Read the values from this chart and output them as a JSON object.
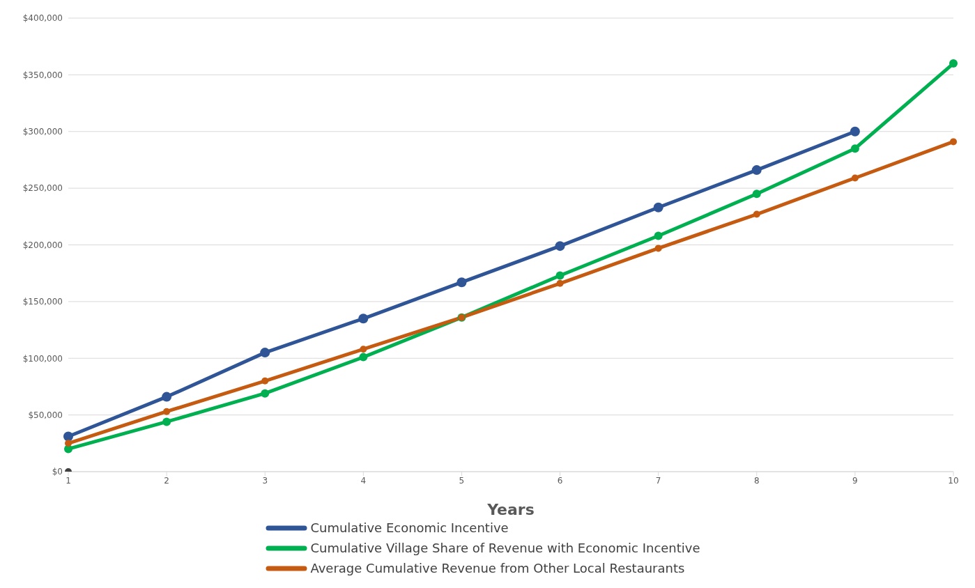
{
  "chart_data": {
    "type": "line",
    "xlabel": "Years",
    "categories": [
      "1",
      "2",
      "3",
      "4",
      "5",
      "6",
      "7",
      "8",
      "9",
      "10"
    ],
    "series": [
      {
        "name": "Cumulative Economic Incentive",
        "color": "#2f5597",
        "values": [
          31000,
          66000,
          105000,
          135000,
          167000,
          199000,
          233000,
          266000,
          300000,
          null
        ]
      },
      {
        "name": "Cumulative Village Share of Revenue with Economic Incentive",
        "color": "#00b050",
        "values": [
          20000,
          44000,
          69000,
          101000,
          136000,
          173000,
          208000,
          245000,
          285000,
          360000
        ]
      },
      {
        "name": "Average Cumulative Revenue from Other Local Restaurants",
        "color": "#c55a11",
        "values": [
          25000,
          53000,
          80000,
          108000,
          136000,
          166000,
          197000,
          227000,
          259000,
          291000
        ]
      },
      {
        "type": "scatter",
        "color": "#404040",
        "values": [
          0,
          null,
          null,
          null,
          null,
          null,
          null,
          null,
          null,
          null
        ]
      }
    ],
    "ylim": [
      0,
      400000
    ],
    "yticks": [
      {
        "value": 0,
        "label": "$0"
      },
      {
        "value": 50000,
        "label": "$50,000"
      },
      {
        "value": 100000,
        "label": "$100,000"
      },
      {
        "value": 150000,
        "label": "$150,000"
      },
      {
        "value": 200000,
        "label": "$200,000"
      },
      {
        "value": 250000,
        "label": "$250,000"
      },
      {
        "value": 300000,
        "label": "$300,000"
      },
      {
        "value": 350000,
        "label": "$350,000"
      },
      {
        "value": 400000,
        "label": "$400,000"
      }
    ],
    "grid": "y",
    "legend": "bottom",
    "marker": "circle",
    "line_style": "solid"
  }
}
